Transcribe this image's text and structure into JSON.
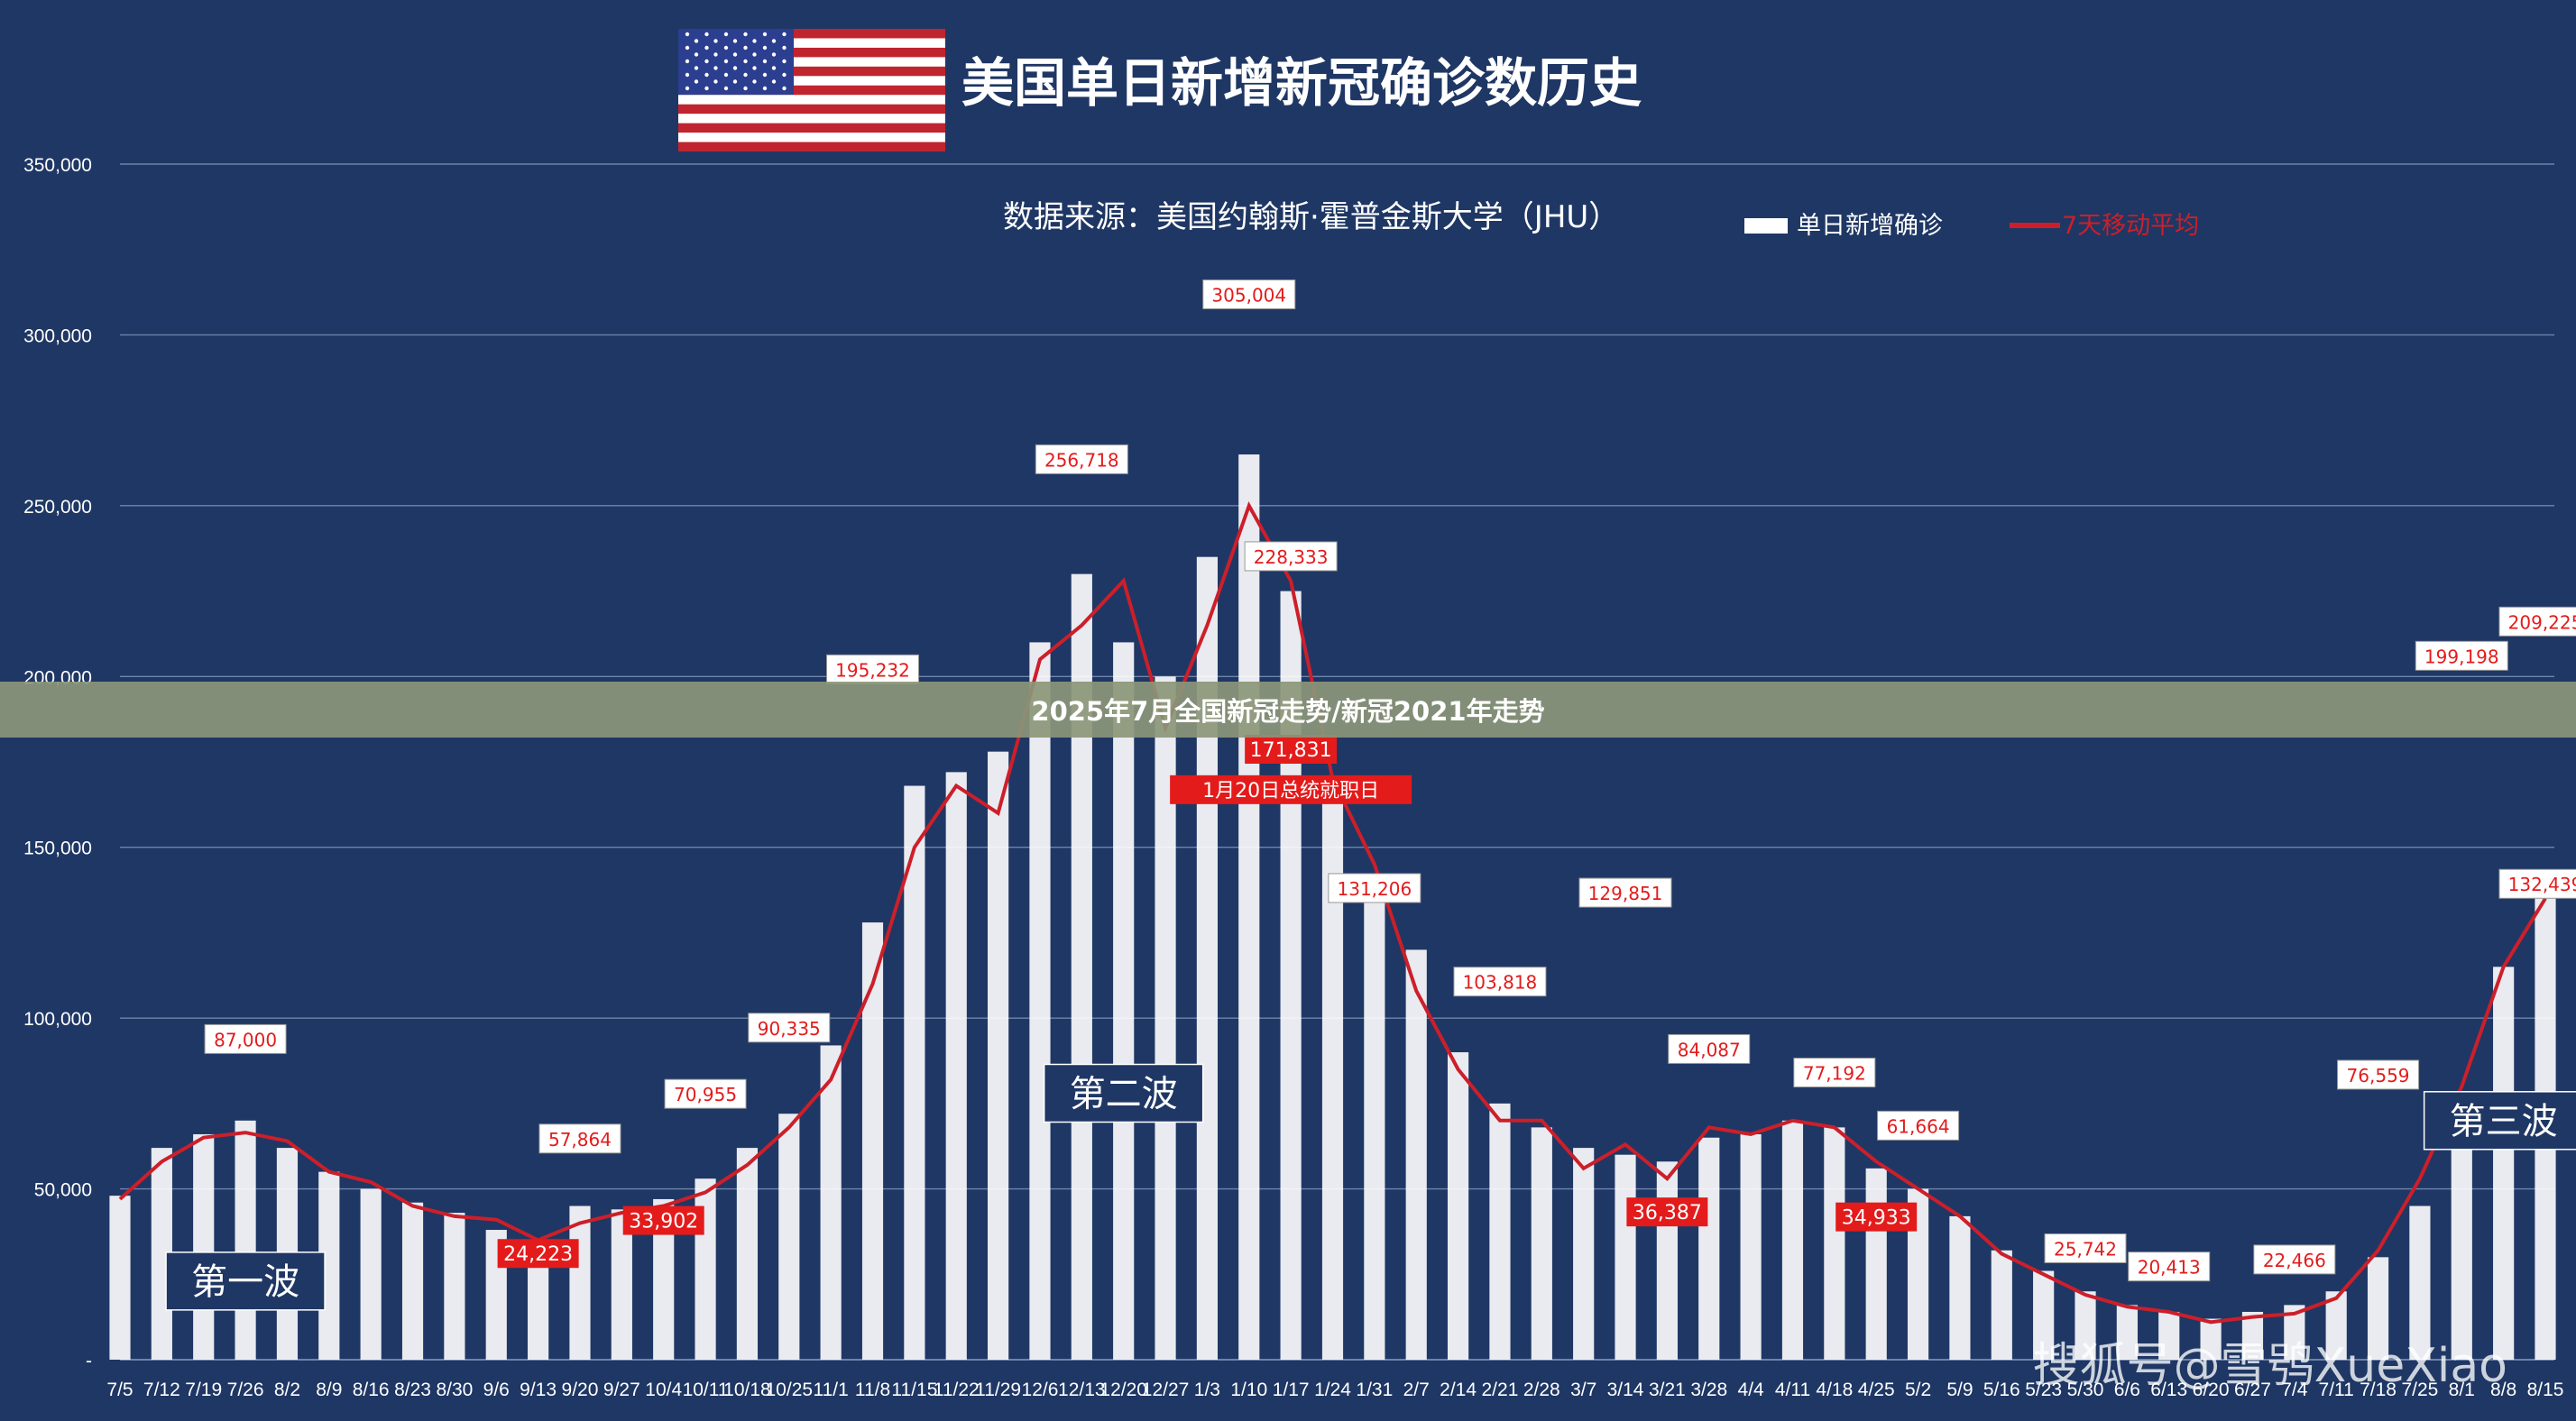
{
  "header": {
    "title": "美国单日新增新冠确诊数历史",
    "source": "数据来源：美国约翰斯·霍普金斯大学（JHU）",
    "legend_bars": "单日新增确诊",
    "legend_line": "7天移动平均"
  },
  "banner": {
    "text": "2025年7月全国新冠走势/新冠2021年走势"
  },
  "watermark": {
    "text": "搜狐号@雪鸮XueXiao"
  },
  "colors": {
    "background": "#1f3764",
    "bars": "#ffffff",
    "line": "#cc1f2a",
    "label_red": "#e41b1b",
    "grid": "#6f84aa"
  },
  "chart_data": {
    "type": "bar",
    "title": "美国单日新增新冠确诊数历史",
    "xlabel": "",
    "ylabel": "",
    "ylim": [
      0,
      350000
    ],
    "yticks": [
      "-",
      "50,000",
      "100,000",
      "150,000",
      "200,000",
      "250,000",
      "300,000",
      "350,000"
    ],
    "categories": [
      "7/5",
      "7/12",
      "7/19",
      "7/26",
      "8/2",
      "8/9",
      "8/16",
      "8/23",
      "8/30",
      "9/6",
      "9/13",
      "9/20",
      "9/27",
      "10/4",
      "10/11",
      "10/18",
      "10/25",
      "11/1",
      "11/8",
      "11/15",
      "11/22",
      "11/29",
      "12/6",
      "12/13",
      "12/20",
      "12/27",
      "1/3",
      "1/10",
      "1/17",
      "1/24",
      "1/31",
      "2/7",
      "2/14",
      "2/21",
      "2/28",
      "3/7",
      "3/14",
      "3/21",
      "3/28",
      "4/4",
      "4/11",
      "4/18",
      "4/25",
      "5/2",
      "5/9",
      "5/16",
      "5/23",
      "5/30",
      "6/6",
      "6/13",
      "6/20",
      "6/27",
      "7/4",
      "7/11",
      "7/18",
      "7/25",
      "8/1",
      "8/8",
      "8/15"
    ],
    "series": [
      {
        "name": "单日新增确诊",
        "values": [
          48000,
          62000,
          66000,
          70000,
          62000,
          55000,
          50000,
          46000,
          43000,
          38000,
          32000,
          45000,
          44000,
          47000,
          53000,
          62000,
          72000,
          92000,
          128000,
          168000,
          172000,
          178000,
          210000,
          230000,
          210000,
          200000,
          235000,
          265000,
          225000,
          170000,
          140000,
          120000,
          90000,
          75000,
          68000,
          62000,
          60000,
          58000,
          65000,
          66000,
          70000,
          68000,
          56000,
          50000,
          42000,
          32000,
          26000,
          20000,
          16000,
          14000,
          12000,
          14000,
          16000,
          20000,
          30000,
          45000,
          75000,
          115000,
          135000
        ]
      },
      {
        "name": "7天移动平均",
        "values": [
          47000,
          58000,
          65000,
          66500,
          64000,
          55000,
          52000,
          45000,
          42000,
          41000,
          35000,
          40000,
          43000,
          45000,
          49000,
          57000,
          68000,
          82000,
          110000,
          150000,
          168000,
          160000,
          205000,
          215000,
          228000,
          185000,
          215000,
          250000,
          228000,
          170000,
          145000,
          108000,
          85000,
          70000,
          70000,
          56000,
          63000,
          53000,
          68000,
          66000,
          70000,
          68000,
          58000,
          50000,
          42000,
          31000,
          25000,
          19000,
          15500,
          14000,
          11000,
          12500,
          13500,
          18000,
          32000,
          53000,
          80000,
          115000,
          135000
        ]
      }
    ],
    "annotations": [
      {
        "label": "87,000",
        "x": "7/26",
        "value": 87000,
        "style": "white"
      },
      {
        "label": "57,864",
        "x": "9/20",
        "value": 57864,
        "style": "white"
      },
      {
        "label": "24,223",
        "x": "9/13",
        "value": 24223,
        "style": "red"
      },
      {
        "label": "33,902",
        "x": "10/4",
        "value": 33902,
        "style": "red"
      },
      {
        "label": "70,955",
        "x": "10/11",
        "value": 70955,
        "style": "white"
      },
      {
        "label": "90,335",
        "x": "10/25",
        "value": 90335,
        "style": "white"
      },
      {
        "label": "195,232",
        "x": "11/8",
        "value": 195232,
        "style": "white"
      },
      {
        "label": "256,718",
        "x": "12/13",
        "value": 256718,
        "style": "white"
      },
      {
        "label": "305,004",
        "x": "1/10",
        "value": 305004,
        "style": "white"
      },
      {
        "label": "228,333",
        "x": "1/17",
        "value": 228333,
        "style": "white"
      },
      {
        "label": "171,831",
        "x": "1/17",
        "value": 171831,
        "style": "red"
      },
      {
        "label": "1月20日总统就职日",
        "x": "1/17",
        "value": 160000,
        "style": "red"
      },
      {
        "label": "131,206",
        "x": "1/31",
        "value": 131206,
        "style": "white"
      },
      {
        "label": "103,818",
        "x": "2/21",
        "value": 103818,
        "style": "white"
      },
      {
        "label": "129,851",
        "x": "3/14",
        "value": 129851,
        "style": "white"
      },
      {
        "label": "36,387",
        "x": "3/21",
        "value": 36387,
        "style": "red"
      },
      {
        "label": "84,087",
        "x": "3/28",
        "value": 84087,
        "style": "white"
      },
      {
        "label": "77,192",
        "x": "4/18",
        "value": 77192,
        "style": "white"
      },
      {
        "label": "34,933",
        "x": "4/25",
        "value": 34933,
        "style": "red"
      },
      {
        "label": "61,664",
        "x": "5/2",
        "value": 61664,
        "style": "white"
      },
      {
        "label": "25,742",
        "x": "5/30",
        "value": 25742,
        "style": "white"
      },
      {
        "label": "20,413",
        "x": "6/13",
        "value": 20413,
        "style": "white"
      },
      {
        "label": "22,466",
        "x": "7/4",
        "value": 22466,
        "style": "white"
      },
      {
        "label": "76,559",
        "x": "7/18",
        "value": 76559,
        "style": "white"
      },
      {
        "label": "199,198",
        "x": "8/1",
        "value": 199198,
        "style": "white"
      },
      {
        "label": "209,225",
        "x": "8/15",
        "value": 209225,
        "style": "white"
      },
      {
        "label": "132,439",
        "x": "8/15",
        "value": 132439,
        "style": "white"
      }
    ],
    "waves": [
      {
        "label": "第一波",
        "x": "7/26",
        "value": 23000
      },
      {
        "label": "第二波",
        "x": "12/20",
        "value": 78000
      },
      {
        "label": "第三波",
        "x": "8/8",
        "value": 70000
      }
    ]
  }
}
